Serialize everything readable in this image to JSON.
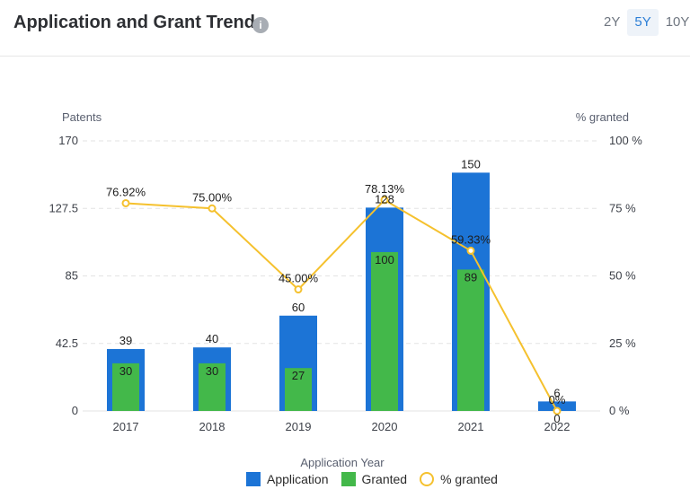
{
  "header": {
    "title": "Application and Grant Trend",
    "info_icon": "i",
    "tabs": [
      {
        "label": "2Y",
        "active": false
      },
      {
        "label": "5Y",
        "active": true
      },
      {
        "label": "10Y",
        "active": false
      }
    ]
  },
  "colors": {
    "application": "#1c74d6",
    "granted": "#43b84a",
    "pct_line": "#f5c12e",
    "grid": "#e3e3e3"
  },
  "chart_data": {
    "type": "bar",
    "categories": [
      "2017",
      "2018",
      "2019",
      "2020",
      "2021",
      "2022"
    ],
    "series": [
      {
        "name": "Application",
        "type": "bar",
        "axis": "left",
        "values": [
          39,
          40,
          60,
          128,
          150,
          6
        ]
      },
      {
        "name": "Granted",
        "type": "bar",
        "axis": "left",
        "values": [
          30,
          30,
          27,
          100,
          89,
          0
        ]
      },
      {
        "name": "% granted",
        "type": "line",
        "axis": "right",
        "values": [
          76.92,
          75.0,
          45.0,
          78.13,
          59.33,
          0
        ]
      }
    ],
    "bar_labels": {
      "application": [
        "39",
        "40",
        "60",
        "128",
        "150",
        "6"
      ],
      "granted": [
        "30",
        "30",
        "27",
        "100",
        "89",
        "0"
      ]
    },
    "pct_labels": [
      "76.92%",
      "75.00%",
      "45.00%",
      "78.13%",
      "59.33%",
      "0%"
    ],
    "xlabel": "Application Year",
    "ylabel": "Patents",
    "ylabel_right": "% granted",
    "ylim": [
      0,
      170
    ],
    "ylim_right": [
      0,
      100
    ],
    "yticks": [
      "170",
      "127.5",
      "85",
      "42.5",
      "0"
    ],
    "yticks_right": [
      "100 %",
      "75 %",
      "50 %",
      "25 %",
      "0 %"
    ],
    "grid": true,
    "legend_position": "bottom-center"
  }
}
